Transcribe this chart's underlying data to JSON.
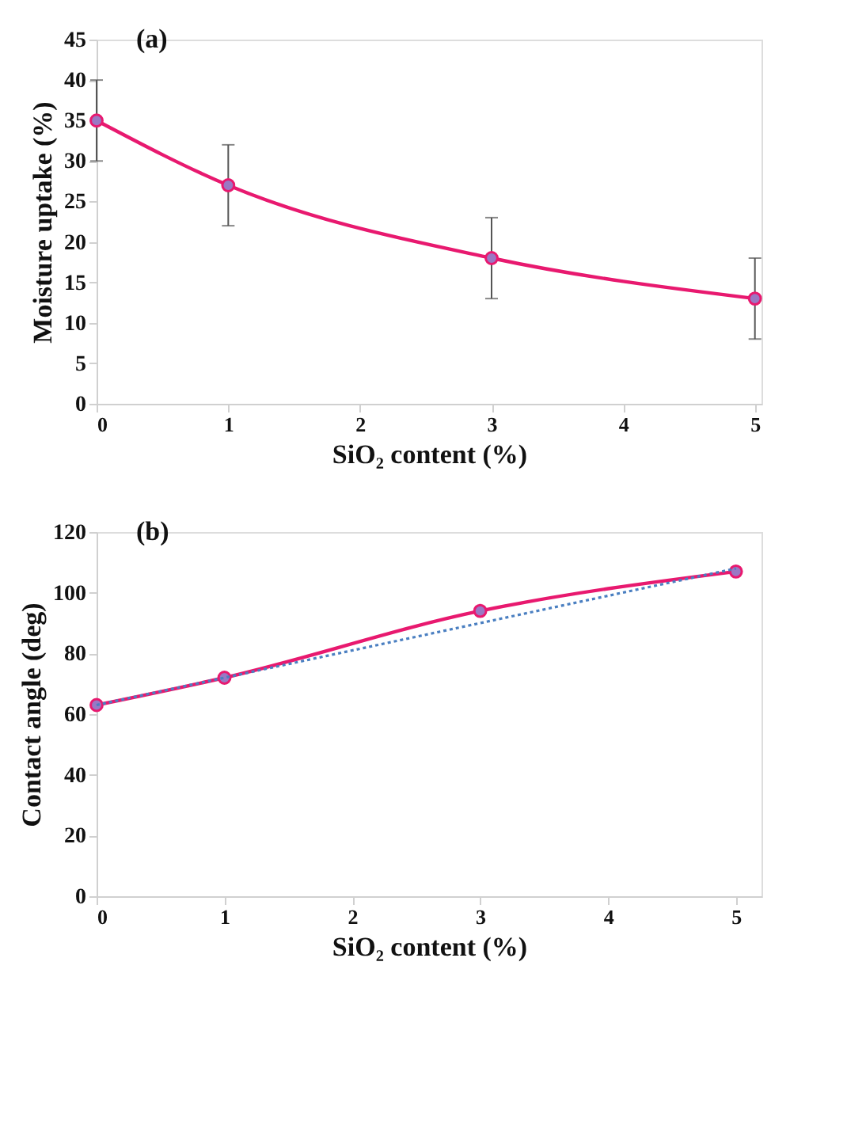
{
  "chart_data": [
    {
      "type": "line",
      "title": "(a)",
      "xlabel": "SiO₂ content (%)",
      "ylabel": "Moisture uptake (%)",
      "x": [
        0,
        1,
        3,
        5
      ],
      "series": [
        {
          "color": "#e8196f",
          "values": [
            35,
            27,
            18,
            13
          ],
          "errors": [
            5,
            5,
            5,
            5
          ]
        }
      ],
      "xlim": [
        0,
        5.05
      ],
      "xticks": [
        0,
        1,
        2,
        3,
        4,
        5
      ],
      "ylim": [
        0,
        45
      ],
      "yticks": [
        0,
        5,
        10,
        15,
        20,
        25,
        30,
        35,
        40,
        45
      ],
      "marker": "circle",
      "line_style": "solid",
      "grid": false
    },
    {
      "type": "line",
      "title": "(b)",
      "xlabel": "SiO₂ content (%)",
      "ylabel": "Contact angle (deg)",
      "x": [
        0,
        1,
        3,
        5
      ],
      "series": [
        {
          "color": "#e8196f",
          "values": [
            63,
            72,
            94,
            107
          ]
        },
        {
          "type": "line",
          "color": "#4a7fc1",
          "x": [
            0,
            5
          ],
          "values": [
            63,
            108
          ],
          "line_style": "dotted",
          "marker": "none"
        }
      ],
      "xlim": [
        0,
        5.2
      ],
      "xticks": [
        0,
        1,
        2,
        3,
        4,
        5
      ],
      "ylim": [
        0,
        120
      ],
      "yticks": [
        0,
        20,
        40,
        60,
        80,
        100,
        120
      ],
      "marker": "circle",
      "line_style": "solid",
      "grid": false
    }
  ]
}
